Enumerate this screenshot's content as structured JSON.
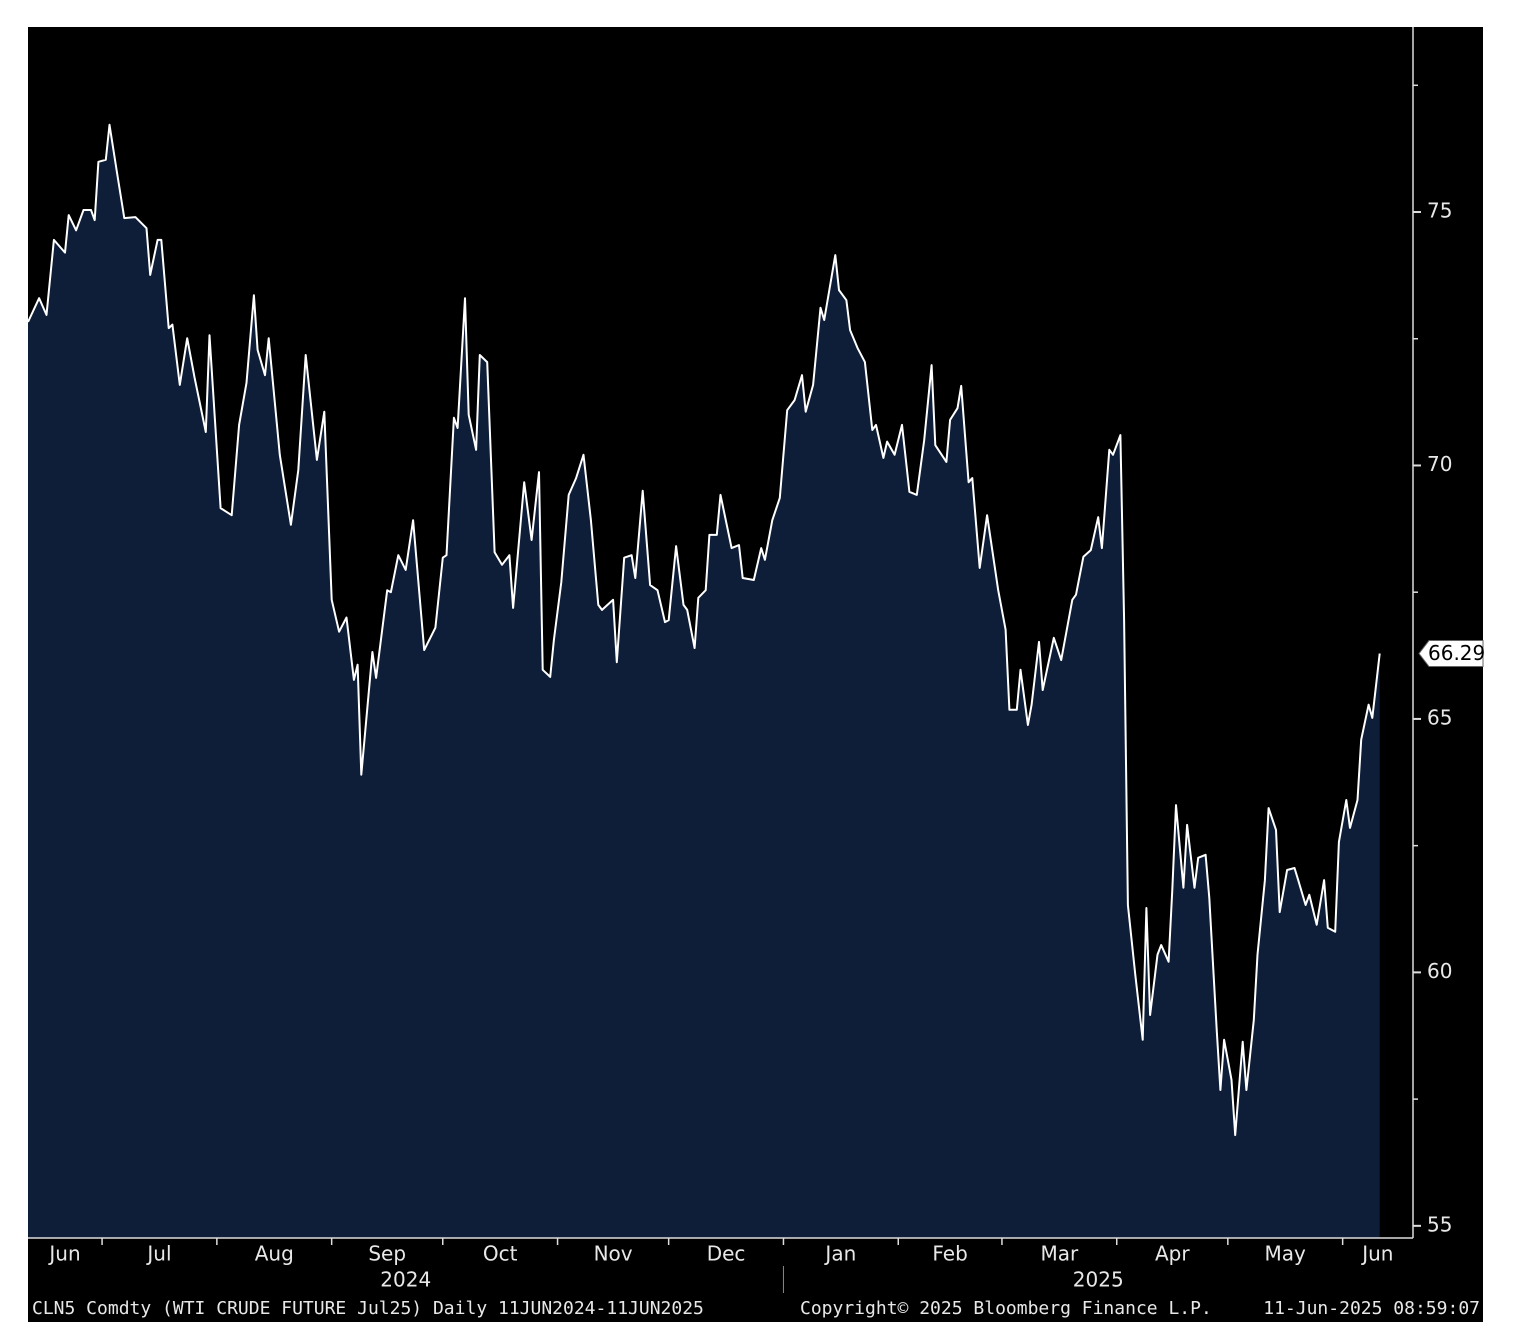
{
  "chart_data": {
    "type": "area",
    "x": [
      "2024-06-11",
      "2024-06-14",
      "2024-06-16",
      "2024-06-18",
      "2024-06-21",
      "2024-06-22",
      "2024-06-24",
      "2024-06-26",
      "2024-06-28",
      "2024-06-29",
      "2024-06-30",
      "2024-07-02",
      "2024-07-03",
      "2024-07-05",
      "2024-07-07",
      "2024-07-10",
      "2024-07-13",
      "2024-07-14",
      "2024-07-16",
      "2024-07-17",
      "2024-07-19",
      "2024-07-20",
      "2024-07-22",
      "2024-07-24",
      "2024-07-26",
      "2024-07-29",
      "2024-07-30",
      "2024-08-02",
      "2024-08-05",
      "2024-08-07",
      "2024-08-09",
      "2024-08-11",
      "2024-08-12",
      "2024-08-14",
      "2024-08-15",
      "2024-08-18",
      "2024-08-21",
      "2024-08-23",
      "2024-08-25",
      "2024-08-28",
      "2024-08-30",
      "2024-09-01",
      "2024-09-03",
      "2024-09-05",
      "2024-09-07",
      "2024-09-08",
      "2024-09-09",
      "2024-09-12",
      "2024-09-13",
      "2024-09-16",
      "2024-09-17",
      "2024-09-19",
      "2024-09-21",
      "2024-09-23",
      "2024-09-26",
      "2024-09-29",
      "2024-10-01",
      "2024-10-02",
      "2024-10-04",
      "2024-10-05",
      "2024-10-07",
      "2024-10-08",
      "2024-10-10",
      "2024-10-11",
      "2024-10-13",
      "2024-10-15",
      "2024-10-17",
      "2024-10-19",
      "2024-10-20",
      "2024-10-23",
      "2024-10-25",
      "2024-10-27",
      "2024-10-28",
      "2024-10-30",
      "2024-10-31",
      "2024-11-02",
      "2024-11-04",
      "2024-11-06",
      "2024-11-08",
      "2024-11-10",
      "2024-11-12",
      "2024-11-13",
      "2024-11-16",
      "2024-11-17",
      "2024-11-19",
      "2024-11-21",
      "2024-11-22",
      "2024-11-24",
      "2024-11-26",
      "2024-11-28",
      "2024-11-30",
      "2024-12-01",
      "2024-12-03",
      "2024-12-05",
      "2024-12-06",
      "2024-12-08",
      "2024-12-09",
      "2024-12-11",
      "2024-12-12",
      "2024-12-14",
      "2024-12-15",
      "2024-12-18",
      "2024-12-20",
      "2024-12-21",
      "2024-12-24",
      "2024-12-26",
      "2024-12-27",
      "2024-12-29",
      "2024-12-31",
      "2025-01-02",
      "2025-01-04",
      "2025-01-06",
      "2025-01-07",
      "2025-01-09",
      "2025-01-11",
      "2025-01-12",
      "2025-01-15",
      "2025-01-16",
      "2025-01-18",
      "2025-01-19",
      "2025-01-21",
      "2025-01-23",
      "2025-01-25",
      "2025-01-26",
      "2025-01-28",
      "2025-01-29",
      "2025-01-31",
      "2025-02-02",
      "2025-02-04",
      "2025-02-06",
      "2025-02-08",
      "2025-02-10",
      "2025-02-11",
      "2025-02-14",
      "2025-02-15",
      "2025-02-17",
      "2025-02-18",
      "2025-02-20",
      "2025-02-21",
      "2025-02-23",
      "2025-02-25",
      "2025-02-28",
      "2025-03-02",
      "2025-03-03",
      "2025-03-05",
      "2025-03-06",
      "2025-03-08",
      "2025-03-09",
      "2025-03-11",
      "2025-03-12",
      "2025-03-15",
      "2025-03-17",
      "2025-03-20",
      "2025-03-21",
      "2025-03-23",
      "2025-03-25",
      "2025-03-27",
      "2025-03-28",
      "2025-03-30",
      "2025-03-31",
      "2025-04-02",
      "2025-04-03",
      "2025-04-04",
      "2025-04-06",
      "2025-04-08",
      "2025-04-09",
      "2025-04-10",
      "2025-04-12",
      "2025-04-13",
      "2025-04-15",
      "2025-04-16",
      "2025-04-17",
      "2025-04-19",
      "2025-04-20",
      "2025-04-22",
      "2025-04-23",
      "2025-04-25",
      "2025-04-26",
      "2025-04-28",
      "2025-04-29",
      "2025-04-30",
      "2025-05-02",
      "2025-05-03",
      "2025-05-05",
      "2025-05-06",
      "2025-05-08",
      "2025-05-09",
      "2025-05-11",
      "2025-05-12",
      "2025-05-14",
      "2025-05-15",
      "2025-05-17",
      "2025-05-19",
      "2025-05-20",
      "2025-05-22",
      "2025-05-23",
      "2025-05-25",
      "2025-05-27",
      "2025-05-28",
      "2025-05-30",
      "2025-05-31",
      "2025-06-02",
      "2025-06-03",
      "2025-06-05",
      "2025-06-06",
      "2025-06-08",
      "2025-06-09",
      "2025-06-11"
    ],
    "values": [
      72.83,
      73.3,
      72.97,
      74.45,
      74.2,
      74.94,
      74.64,
      75.04,
      75.04,
      74.84,
      75.99,
      76.03,
      76.72,
      75.79,
      74.88,
      74.9,
      74.68,
      73.76,
      74.45,
      74.45,
      72.71,
      72.78,
      71.59,
      72.51,
      71.73,
      70.66,
      72.57,
      69.16,
      69.02,
      70.8,
      71.63,
      73.36,
      72.28,
      71.78,
      72.51,
      70.21,
      68.83,
      69.91,
      72.18,
      70.11,
      71.06,
      67.35,
      66.72,
      67.0,
      65.77,
      66.07,
      63.9,
      66.32,
      65.81,
      67.54,
      67.5,
      68.23,
      67.94,
      68.92,
      66.36,
      66.8,
      68.18,
      68.23,
      70.94,
      70.74,
      73.3,
      71.0,
      70.31,
      72.18,
      72.04,
      68.29,
      68.04,
      68.23,
      67.19,
      69.67,
      68.53,
      69.87,
      65.97,
      65.83,
      66.56,
      67.7,
      69.42,
      69.75,
      70.21,
      68.92,
      67.25,
      67.15,
      67.35,
      66.12,
      68.18,
      68.23,
      67.78,
      69.5,
      67.64,
      67.54,
      66.91,
      66.95,
      68.41,
      67.25,
      67.15,
      66.4,
      67.39,
      67.54,
      68.63,
      68.63,
      69.42,
      68.37,
      68.43,
      67.78,
      67.74,
      68.37,
      68.14,
      68.92,
      69.36,
      71.09,
      71.29,
      71.78,
      71.06,
      71.59,
      73.11,
      72.87,
      74.15,
      73.46,
      73.26,
      72.67,
      72.32,
      72.04,
      70.7,
      70.8,
      70.15,
      70.47,
      70.21,
      70.8,
      69.48,
      69.42,
      70.5,
      71.98,
      70.4,
      70.07,
      70.9,
      71.13,
      71.57,
      69.67,
      69.75,
      67.98,
      69.02,
      67.54,
      66.76,
      65.18,
      65.18,
      65.97,
      64.88,
      65.28,
      66.52,
      65.57,
      66.6,
      66.16,
      67.35,
      67.45,
      68.2,
      68.33,
      68.98,
      68.37,
      70.31,
      70.21,
      70.6,
      66.95,
      61.33,
      59.95,
      58.67,
      61.27,
      59.16,
      60.35,
      60.54,
      60.21,
      61.63,
      63.3,
      61.67,
      62.91,
      61.67,
      62.26,
      62.32,
      61.47,
      58.87,
      57.68,
      58.67,
      57.88,
      56.79,
      58.63,
      57.68,
      59.06,
      60.35,
      61.82,
      63.24,
      62.81,
      61.19,
      62.02,
      62.06,
      61.82,
      61.33,
      61.53,
      60.94,
      61.82,
      60.88,
      60.8,
      62.57,
      63.4,
      62.85,
      63.4,
      64.59,
      65.28,
      65.02,
      66.29
    ],
    "line_color": "#ffffff",
    "fill_color": "#0e1d38",
    "last_value_label": "66.29",
    "xlim": [
      "2024-06-11",
      "2025-06-20"
    ],
    "xticks": [
      {
        "value": "2024-06-01",
        "label": "Jun"
      },
      {
        "value": "2024-07-01",
        "label": "Jul"
      },
      {
        "value": "2024-08-01",
        "label": "Aug"
      },
      {
        "value": "2024-09-01",
        "label": "Sep"
      },
      {
        "value": "2024-10-01",
        "label": "Oct"
      },
      {
        "value": "2024-11-01",
        "label": "Nov"
      },
      {
        "value": "2024-12-01",
        "label": "Dec"
      },
      {
        "value": "2025-01-01",
        "label": "Jan"
      },
      {
        "value": "2025-02-01",
        "label": "Feb"
      },
      {
        "value": "2025-03-01",
        "label": "Mar"
      },
      {
        "value": "2025-04-01",
        "label": "Apr"
      },
      {
        "value": "2025-05-01",
        "label": "May"
      },
      {
        "value": "2025-06-01",
        "label": "Jun"
      }
    ],
    "years": [
      {
        "value": "2024-01-01",
        "label": "2024"
      },
      {
        "value": "2025-01-01",
        "label": "2025"
      }
    ],
    "ylim": [
      54.76,
      78.65
    ],
    "yticks": [
      55,
      60,
      65,
      70,
      75
    ],
    "yticks_minor": [
      57.5,
      62.5,
      67.5,
      72.5,
      77.5
    ],
    "footer": {
      "security": "CLN5 Comdty (WTI CRUDE FUTURE  Jul25)  Daily 11JUN2024-11JUN2025",
      "copyright": "Copyright© 2025 Bloomberg Finance L.P.",
      "timestamp": "11-Jun-2025 08:59:07"
    }
  }
}
